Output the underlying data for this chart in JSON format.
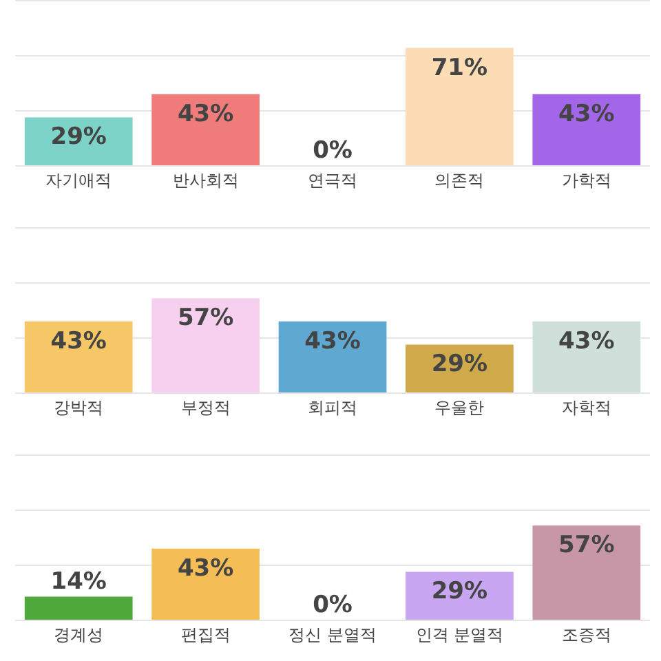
{
  "chart_data": [
    {
      "type": "bar",
      "categories": [
        "자기애적",
        "반사회적",
        "연극적",
        "의존적",
        "가학적"
      ],
      "values": [
        29,
        43,
        0,
        71,
        43
      ],
      "value_labels": [
        "29%",
        "43%",
        "0%",
        "71%",
        "43%"
      ],
      "colors": [
        "#7dd3c8",
        "#ef7b7b",
        "#8fd68f",
        "#fbdcb4",
        "#a366e8"
      ],
      "ylim": [
        0,
        100
      ],
      "yticks": [
        {
          "value": 0,
          "label": null
        },
        {
          "value": 33.3,
          "label": null
        },
        {
          "value": 66.7,
          "label": null
        },
        {
          "value": 100,
          "label": null
        }
      ],
      "grid": "y"
    },
    {
      "type": "bar",
      "categories": [
        "강박적",
        "부정적",
        "회피적",
        "우울한",
        "자학적"
      ],
      "values": [
        43,
        57,
        43,
        29,
        43
      ],
      "value_labels": [
        "43%",
        "57%",
        "43%",
        "29%",
        "43%"
      ],
      "colors": [
        "#f5c766",
        "#f7d0ef",
        "#5ea8d2",
        "#cfa94a",
        "#cfe0da"
      ],
      "ylim": [
        0,
        100
      ],
      "yticks": [
        {
          "value": 0,
          "label": null
        },
        {
          "value": 33.3,
          "label": null
        },
        {
          "value": 66.7,
          "label": null
        },
        {
          "value": 100,
          "label": null
        }
      ],
      "grid": "y"
    },
    {
      "type": "bar",
      "categories": [
        "경계성",
        "편집적",
        "정신 분열적",
        "인격 분열적",
        "조증적"
      ],
      "values": [
        14,
        43,
        0,
        29,
        57
      ],
      "value_labels": [
        "14%",
        "43%",
        "0%",
        "29%",
        "57%"
      ],
      "colors": [
        "#4fa83a",
        "#f5bd55",
        "#e06060",
        "#c9a6f2",
        "#c797a8"
      ],
      "ylim": [
        0,
        100
      ],
      "yticks": [
        {
          "value": 0,
          "label": null
        },
        {
          "value": 33.3,
          "label": null
        },
        {
          "value": 66.7,
          "label": null
        },
        {
          "value": 100,
          "label": null
        }
      ],
      "grid": "y"
    }
  ]
}
